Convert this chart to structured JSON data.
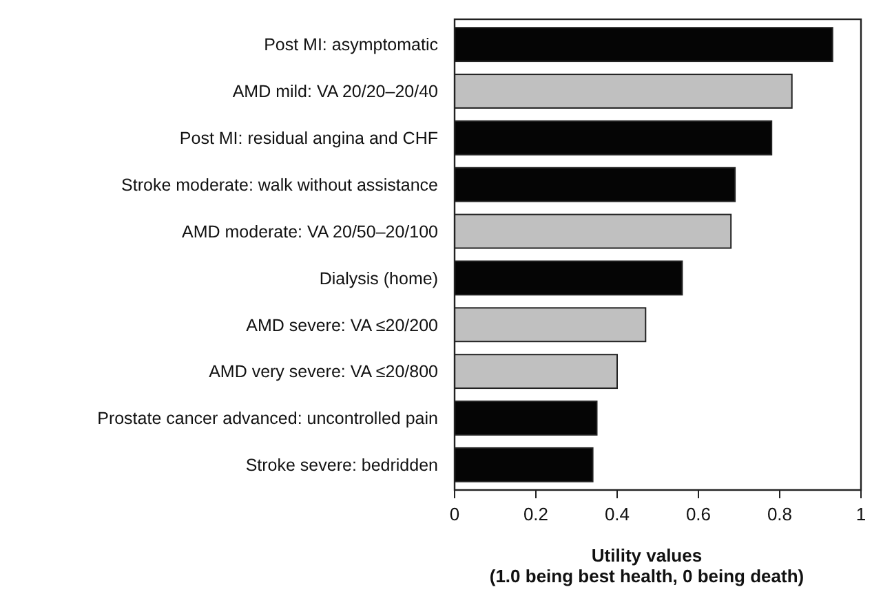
{
  "chart_data": {
    "type": "bar",
    "orientation": "horizontal",
    "categories": [
      "Post MI: asymptomatic",
      "AMD mild: VA 20/20–20/40",
      "Post MI: residual angina and CHF",
      "Stroke moderate: walk without assistance",
      "AMD moderate: VA 20/50–20/100",
      "Dialysis (home)",
      "AMD severe: VA ≤20/200",
      "AMD very severe: VA ≤20/800",
      "Prostate cancer advanced: uncontrolled pain",
      "Stroke severe: bedridden"
    ],
    "values": [
      0.93,
      0.83,
      0.78,
      0.69,
      0.68,
      0.56,
      0.47,
      0.4,
      0.35,
      0.34
    ],
    "colors": [
      "#050505",
      "#c0c0c0",
      "#050505",
      "#050505",
      "#c0c0c0",
      "#050505",
      "#c0c0c0",
      "#c0c0c0",
      "#050505",
      "#050505"
    ],
    "xlim": [
      0,
      1
    ],
    "xticks": [
      0,
      0.2,
      0.4,
      0.6,
      0.8,
      1
    ],
    "xlabel": "Utility values\n(1.0 being best health, 0 being death)"
  }
}
